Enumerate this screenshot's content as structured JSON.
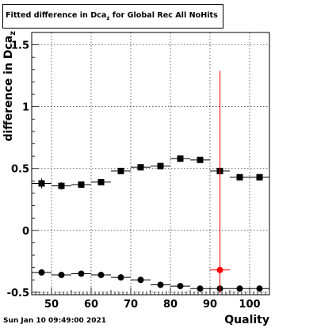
{
  "title": {
    "main": "Fitted difference in Dca",
    "subscript": "z",
    "rest": " for Global Rec All NoHits"
  },
  "footer": "Sun Jan 10 09:49:00 2021",
  "chart_data": {
    "type": "scatter",
    "title": "Fitted difference in Dca_z for Global Rec All NoHits",
    "xlabel": "Quality",
    "ylabel": "difference in Dca_z",
    "ylabel_main": "difference in Dca",
    "ylabel_sub": "z",
    "xlim": [
      45,
      105
    ],
    "ylim": [
      -0.52,
      1.6
    ],
    "grid": true,
    "xticks": [
      50,
      60,
      70,
      80,
      90,
      100
    ],
    "xtick_labels": [
      "50",
      "60",
      "70",
      "80",
      "90",
      "100"
    ],
    "yticks": [
      -0.5,
      0,
      0.5,
      1,
      1.5
    ],
    "ytick_labels": [
      "-0.5",
      "0",
      "0.5",
      "1",
      "1.5"
    ],
    "x": [
      47.5,
      52.5,
      57.5,
      62.5,
      67.5,
      72.5,
      77.5,
      82.5,
      87.5,
      92.5,
      97.5,
      102.5
    ],
    "xerr": 2.5,
    "series": [
      {
        "marker": "square",
        "color": "#000000",
        "values": [
          0.38,
          0.36,
          0.37,
          0.39,
          0.48,
          0.51,
          0.52,
          0.58,
          0.57,
          0.48,
          0.43,
          0.43
        ],
        "yerr": [
          0.04,
          0.03,
          0.02,
          0.02,
          0.02,
          0.02,
          0.02,
          0.02,
          0.02,
          0.02,
          0.02,
          0.02
        ]
      },
      {
        "marker": "circle",
        "color": "#000000",
        "values": [
          -0.34,
          -0.36,
          -0.35,
          -0.36,
          -0.38,
          -0.4,
          -0.44,
          -0.45,
          -0.47,
          -0.47,
          -0.47,
          -0.47
        ],
        "yerr": [
          0.02,
          0.01,
          0.01,
          0.01,
          0.01,
          0.01,
          0.01,
          0.01,
          0.01,
          0.01,
          0.01,
          0.01
        ]
      }
    ],
    "highlight_point": {
      "x": 92.5,
      "y": -0.32,
      "yerr_up": 1.61,
      "yerr_down": 0.19,
      "color": "#ff0000"
    }
  }
}
